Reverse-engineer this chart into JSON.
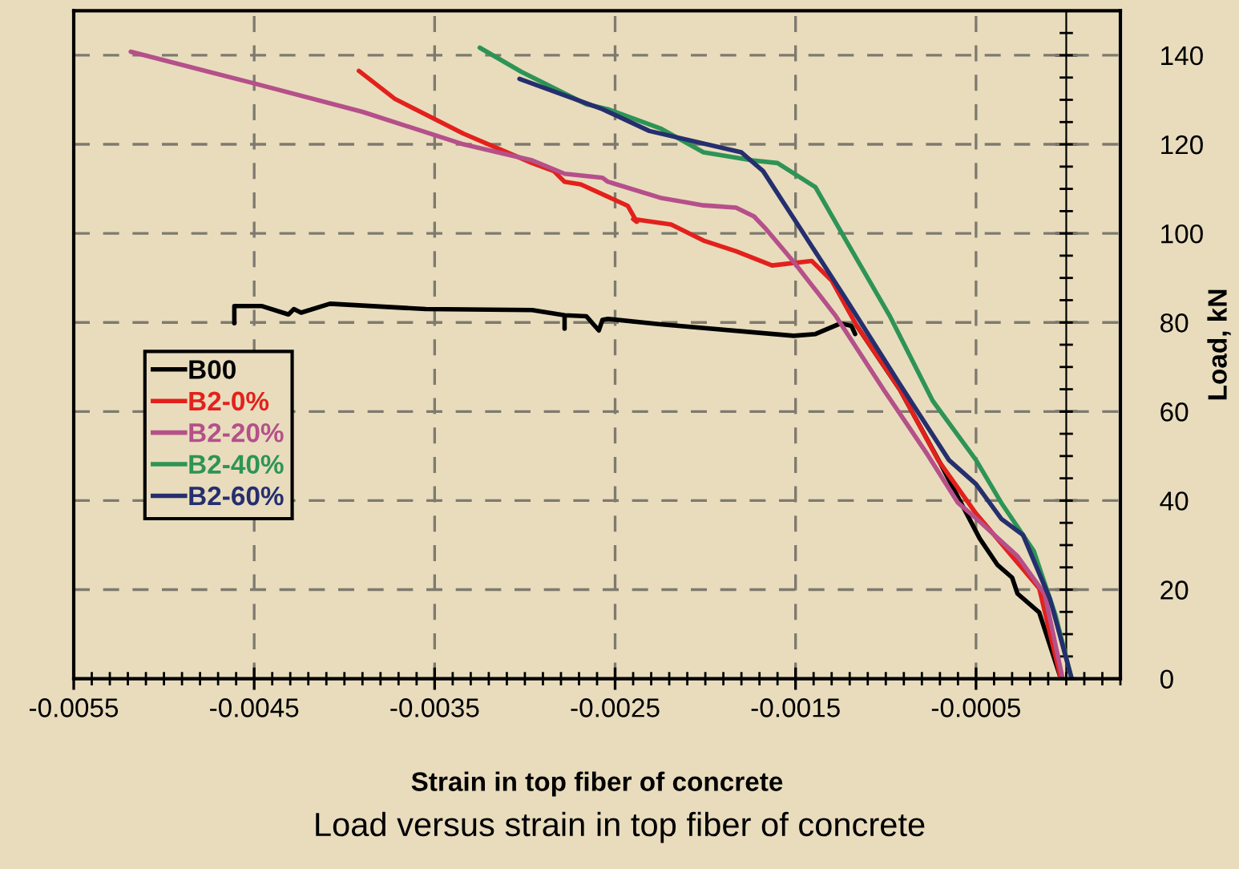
{
  "chart_data": {
    "type": "line",
    "xlabel": "Strain in top fiber of concrete",
    "ylabel": "Load, kN",
    "annotations": [
      "Load versus strain in top fiber of concrete"
    ],
    "xlim": [
      -0.0055,
      0.0003
    ],
    "ylim": [
      0,
      150
    ],
    "xticks": [
      -0.0055,
      -0.0045,
      -0.0035,
      -0.0025,
      -0.0015,
      -0.0005
    ],
    "yticks": [
      0,
      20,
      40,
      60,
      80,
      100,
      120,
      140
    ],
    "grid": true,
    "legend": "left",
    "line_style": "solid",
    "marker": "none",
    "series": [
      {
        "name": "B00",
        "color": "#000000",
        "x": [
          -0.00461,
          -0.00461,
          -0.00446,
          -0.00431,
          -0.00428,
          -0.00424,
          -0.00408,
          -0.00355,
          -0.00296,
          -0.00278,
          -0.00278,
          -0.00278,
          -0.00266,
          -0.00259,
          -0.00257,
          -0.00254,
          -0.00225,
          -0.00151,
          -0.00139,
          -0.00125,
          -0.00119,
          -0.00117,
          null,
          -0.00116,
          -0.00092,
          -0.0007,
          -0.00048,
          -0.00038,
          -0.0003,
          -0.00027,
          -0.00015,
          -3e-05
        ],
        "values": [
          79.8,
          83.7,
          83.7,
          81.8,
          83,
          82.2,
          84.2,
          83,
          82.8,
          81.6,
          78.6,
          81.6,
          81.4,
          78.2,
          80.6,
          80.8,
          79.6,
          77,
          77.4,
          79.8,
          79.2,
          77.4,
          null,
          79.2,
          64.8,
          48.5,
          31.5,
          25.5,
          22.7,
          19.1,
          14.9,
          0
        ]
      },
      {
        "name": "B2-0%",
        "color": "#e3211c",
        "x": [
          -0.00392,
          -0.00372,
          -0.00334,
          -0.00296,
          -0.00284,
          -0.00278,
          -0.00269,
          -0.00243,
          -0.00238,
          -0.0024,
          -0.00219,
          -0.00201,
          -0.00183,
          -0.00163,
          -0.00141,
          -0.0013,
          -0.00116,
          -0.00092,
          -0.00071,
          -0.0005,
          -0.0003,
          -0.00015,
          -3e-05
        ],
        "values": [
          136.5,
          130.2,
          122.4,
          115.8,
          114,
          111.6,
          111,
          106.2,
          102.6,
          103.2,
          102,
          98.4,
          96,
          92.8,
          93.8,
          89.4,
          79.2,
          64.8,
          49.1,
          37.1,
          27.5,
          20.3,
          0
        ]
      },
      {
        "name": "B2-20%",
        "color": "#b5508a",
        "x": [
          -0.005184,
          -0.00452,
          -0.0039,
          -0.00334,
          -0.00296,
          -0.00278,
          -0.00257,
          -0.00254,
          -0.00225,
          -0.00201,
          -0.00183,
          -0.00173,
          -0.00166,
          -0.00151,
          -0.00128,
          -0.00101,
          -0.00077,
          -0.0006,
          -0.00048,
          -0.00027,
          -0.00012,
          -2e-05
        ],
        "values": [
          140.8,
          133.9,
          127.3,
          120,
          116.4,
          113.4,
          112.5,
          111.6,
          108,
          106.3,
          105.8,
          103.8,
          100.8,
          93.6,
          81.6,
          64.8,
          50.4,
          39.5,
          35.3,
          27.5,
          19.1,
          0
        ]
      },
      {
        "name": "B2-40%",
        "color": "#2e9455",
        "x": [
          -0.00325,
          -0.00302,
          -0.00266,
          -0.00254,
          -0.00225,
          -0.00201,
          -0.00174,
          -0.0016,
          -0.00139,
          -0.00122,
          -0.00098,
          -0.00074,
          -0.0005,
          -0.00036,
          -0.00018,
          -6e-05,
          3e-05
        ],
        "values": [
          141.7,
          136.3,
          129,
          127.9,
          123.6,
          118.2,
          116.4,
          115.8,
          110.4,
          98.4,
          81.6,
          62.4,
          49.1,
          39.5,
          28.7,
          14.3,
          0
        ]
      },
      {
        "name": "B2-60%",
        "color": "#252f6e",
        "x": [
          -0.00303,
          -0.00257,
          -0.00231,
          -0.0018,
          -0.00168,
          -0.00145,
          -0.00122,
          -0.00092,
          -0.00065,
          -0.0005,
          -0.00036,
          -0.00024,
          -9e-05,
          3e-05
        ],
        "values": [
          134.7,
          127.9,
          123,
          118.2,
          114,
          99.6,
          85.2,
          66,
          49.1,
          43.7,
          35.9,
          32.3,
          17.9,
          0
        ]
      }
    ]
  }
}
